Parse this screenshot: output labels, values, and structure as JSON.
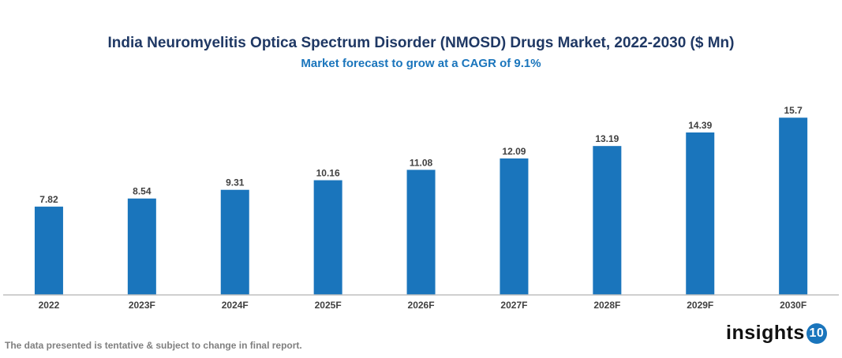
{
  "chart_data": {
    "type": "bar",
    "title": "India Neuromyelitis Optica Spectrum Disorder (NMOSD) Drugs Market, 2022-2030 ($ Mn)",
    "subtitle": "Market forecast to grow at a CAGR of 9.1%",
    "categories": [
      "2022",
      "2023F",
      "2024F",
      "2025F",
      "2026F",
      "2027F",
      "2028F",
      "2029F",
      "2030F"
    ],
    "values": [
      7.82,
      8.54,
      9.31,
      10.16,
      11.08,
      12.09,
      13.19,
      14.39,
      15.7
    ],
    "value_labels": [
      "7.82",
      "8.54",
      "9.31",
      "10.16",
      "11.08",
      "12.09",
      "13.19",
      "14.39",
      "15.7"
    ],
    "xlabel": "",
    "ylabel": "",
    "ylim": [
      0,
      19
    ],
    "grid": false,
    "legend": "none",
    "bar_color": "#1a75bc"
  },
  "footnote": "The data presented is tentative & subject to change in final report.",
  "logo": {
    "text": "insights",
    "badge": "10"
  }
}
